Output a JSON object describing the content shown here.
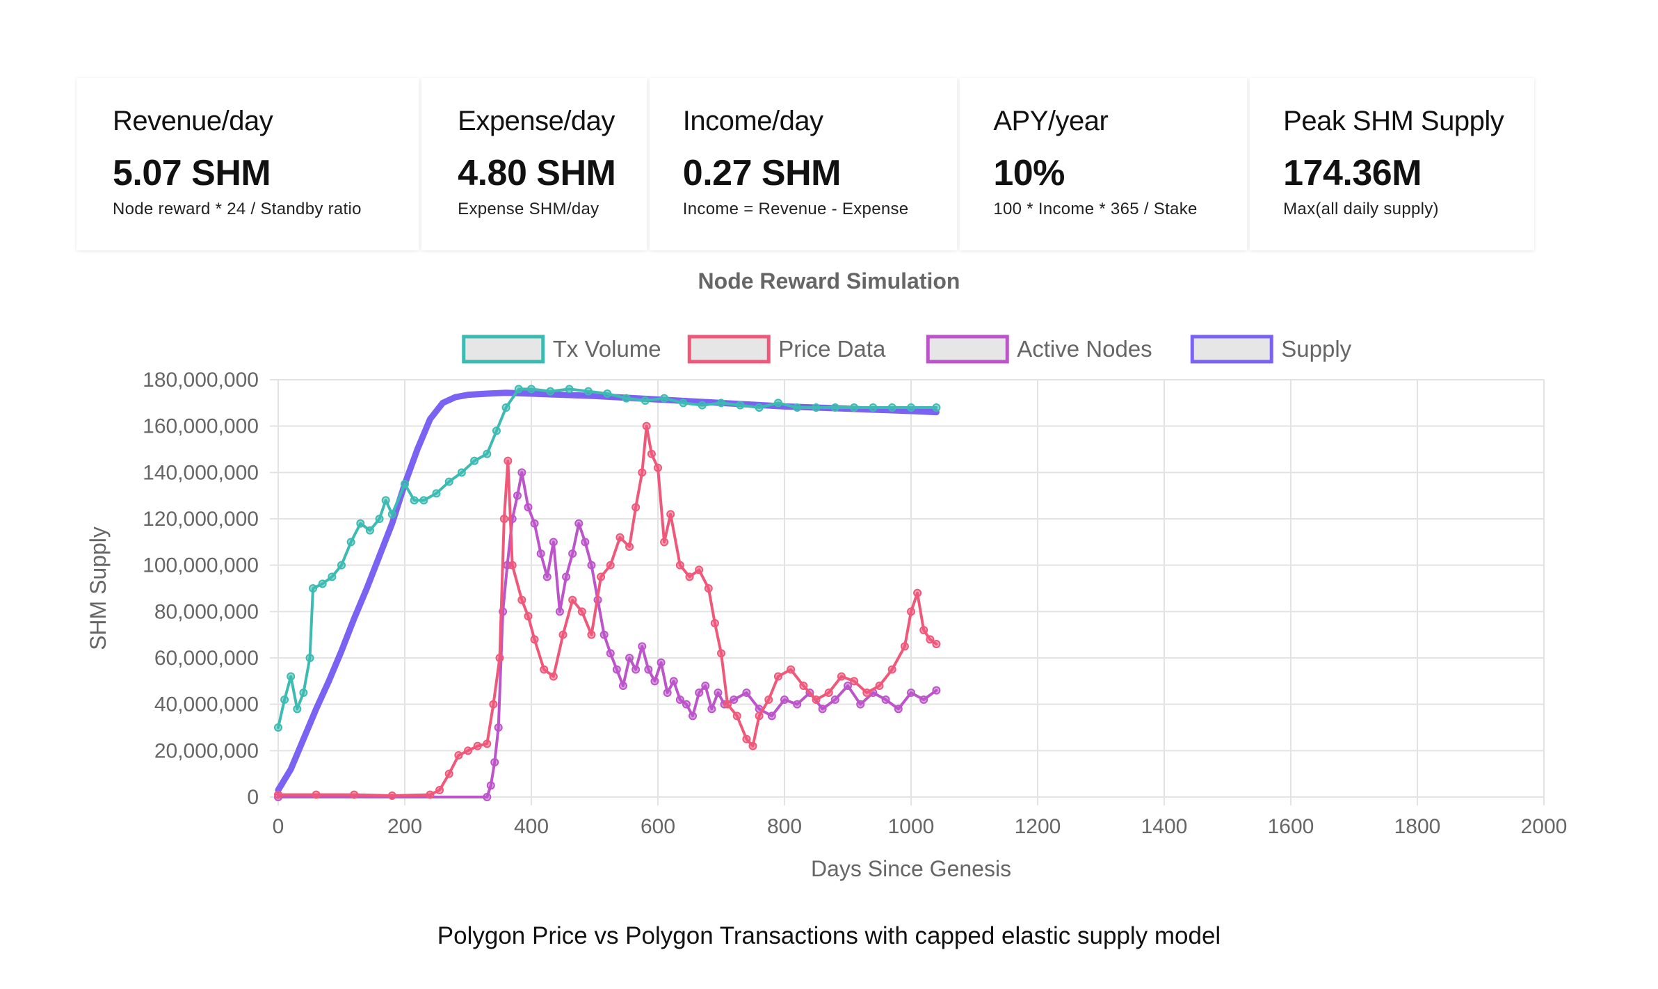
{
  "cards": [
    {
      "label": "Revenue/day",
      "value": "5.07 SHM",
      "sub": "Node reward * 24 / Standby ratio"
    },
    {
      "label": "Expense/day",
      "value": "4.80 SHM",
      "sub": "Expense  SHM/day"
    },
    {
      "label": "Income/day",
      "value": "0.27 SHM",
      "sub": "Income = Revenue - Expense"
    },
    {
      "label": "APY/year",
      "value": "10%",
      "sub": "100 * Income * 365 / Stake"
    },
    {
      "label": "Peak SHM Supply",
      "value": "174.36M",
      "sub": "Max(all daily supply)"
    }
  ],
  "caption": "Polygon Price vs Polygon Transactions with capped elastic supply model",
  "chart_data": {
    "type": "line",
    "title": "Node Reward Simulation",
    "xlabel": "Days Since Genesis",
    "ylabel": "SHM Supply",
    "xlim": [
      0,
      2000
    ],
    "ylim": [
      0,
      180000000
    ],
    "x_ticks": [
      "0",
      "200",
      "400",
      "600",
      "800",
      "1000",
      "1200",
      "1400",
      "1600",
      "1800",
      "2000"
    ],
    "y_ticks": [
      "0",
      "20,000,000",
      "40,000,000",
      "60,000,000",
      "80,000,000",
      "100,000,000",
      "120,000,000",
      "140,000,000",
      "160,000,000",
      "180,000,000"
    ],
    "grid": true,
    "legend_position": "top",
    "series": [
      {
        "name": "Tx Volume",
        "color": "#3dbbb2",
        "points": [
          [
            0,
            30000000
          ],
          [
            10,
            42000000
          ],
          [
            20,
            52000000
          ],
          [
            30,
            38000000
          ],
          [
            40,
            45000000
          ],
          [
            50,
            60000000
          ],
          [
            55,
            90000000
          ],
          [
            70,
            92000000
          ],
          [
            85,
            95000000
          ],
          [
            100,
            100000000
          ],
          [
            115,
            110000000
          ],
          [
            130,
            118000000
          ],
          [
            145,
            115000000
          ],
          [
            160,
            120000000
          ],
          [
            170,
            128000000
          ],
          [
            180,
            122000000
          ],
          [
            200,
            135000000
          ],
          [
            215,
            128000000
          ],
          [
            230,
            128000000
          ],
          [
            250,
            131000000
          ],
          [
            270,
            136000000
          ],
          [
            290,
            140000000
          ],
          [
            310,
            145000000
          ],
          [
            330,
            148000000
          ],
          [
            345,
            158000000
          ],
          [
            360,
            168000000
          ],
          [
            380,
            176000000
          ],
          [
            400,
            176000000
          ],
          [
            430,
            175000000
          ],
          [
            460,
            176000000
          ],
          [
            490,
            175000000
          ],
          [
            520,
            174000000
          ],
          [
            550,
            172000000
          ],
          [
            580,
            171000000
          ],
          [
            610,
            172000000
          ],
          [
            640,
            170000000
          ],
          [
            670,
            169000000
          ],
          [
            700,
            170000000
          ],
          [
            730,
            169000000
          ],
          [
            760,
            168000000
          ],
          [
            790,
            170000000
          ],
          [
            820,
            168000000
          ],
          [
            850,
            168000000
          ],
          [
            880,
            168000000
          ],
          [
            910,
            168000000
          ],
          [
            940,
            168000000
          ],
          [
            970,
            168000000
          ],
          [
            1000,
            168000000
          ],
          [
            1040,
            168000000
          ]
        ]
      },
      {
        "name": "Price Data",
        "color": "#f0587a",
        "points": [
          [
            0,
            1000000
          ],
          [
            60,
            1000000
          ],
          [
            120,
            1000000
          ],
          [
            180,
            600000
          ],
          [
            240,
            1000000
          ],
          [
            255,
            3000000
          ],
          [
            270,
            10000000
          ],
          [
            285,
            18000000
          ],
          [
            300,
            20000000
          ],
          [
            315,
            22000000
          ],
          [
            330,
            23000000
          ],
          [
            340,
            40000000
          ],
          [
            350,
            60000000
          ],
          [
            357,
            120000000
          ],
          [
            363,
            145000000
          ],
          [
            370,
            100000000
          ],
          [
            385,
            85000000
          ],
          [
            395,
            78000000
          ],
          [
            405,
            68000000
          ],
          [
            420,
            55000000
          ],
          [
            435,
            52000000
          ],
          [
            450,
            70000000
          ],
          [
            465,
            85000000
          ],
          [
            480,
            80000000
          ],
          [
            495,
            70000000
          ],
          [
            510,
            95000000
          ],
          [
            525,
            100000000
          ],
          [
            540,
            112000000
          ],
          [
            555,
            108000000
          ],
          [
            565,
            125000000
          ],
          [
            575,
            140000000
          ],
          [
            582,
            160000000
          ],
          [
            590,
            148000000
          ],
          [
            600,
            142000000
          ],
          [
            610,
            110000000
          ],
          [
            620,
            122000000
          ],
          [
            635,
            100000000
          ],
          [
            650,
            95000000
          ],
          [
            665,
            98000000
          ],
          [
            680,
            90000000
          ],
          [
            690,
            75000000
          ],
          [
            700,
            62000000
          ],
          [
            710,
            40000000
          ],
          [
            725,
            35000000
          ],
          [
            740,
            25000000
          ],
          [
            750,
            22000000
          ],
          [
            760,
            35000000
          ],
          [
            775,
            42000000
          ],
          [
            790,
            52000000
          ],
          [
            810,
            55000000
          ],
          [
            830,
            48000000
          ],
          [
            850,
            42000000
          ],
          [
            870,
            45000000
          ],
          [
            890,
            52000000
          ],
          [
            910,
            50000000
          ],
          [
            930,
            45000000
          ],
          [
            950,
            48000000
          ],
          [
            970,
            55000000
          ],
          [
            990,
            65000000
          ],
          [
            1000,
            80000000
          ],
          [
            1010,
            88000000
          ],
          [
            1020,
            72000000
          ],
          [
            1030,
            68000000
          ],
          [
            1040,
            66000000
          ]
        ]
      },
      {
        "name": "Active Nodes",
        "color": "#bb55c9",
        "points": [
          [
            0,
            0
          ],
          [
            330,
            0
          ],
          [
            336,
            5000000
          ],
          [
            342,
            15000000
          ],
          [
            348,
            30000000
          ],
          [
            355,
            80000000
          ],
          [
            362,
            100000000
          ],
          [
            370,
            120000000
          ],
          [
            378,
            130000000
          ],
          [
            385,
            140000000
          ],
          [
            395,
            125000000
          ],
          [
            405,
            118000000
          ],
          [
            415,
            105000000
          ],
          [
            425,
            95000000
          ],
          [
            435,
            110000000
          ],
          [
            445,
            80000000
          ],
          [
            455,
            95000000
          ],
          [
            465,
            105000000
          ],
          [
            475,
            118000000
          ],
          [
            485,
            110000000
          ],
          [
            495,
            100000000
          ],
          [
            505,
            85000000
          ],
          [
            515,
            70000000
          ],
          [
            525,
            62000000
          ],
          [
            535,
            55000000
          ],
          [
            545,
            48000000
          ],
          [
            555,
            60000000
          ],
          [
            565,
            55000000
          ],
          [
            575,
            65000000
          ],
          [
            585,
            55000000
          ],
          [
            595,
            50000000
          ],
          [
            605,
            58000000
          ],
          [
            615,
            45000000
          ],
          [
            625,
            50000000
          ],
          [
            635,
            42000000
          ],
          [
            645,
            40000000
          ],
          [
            655,
            35000000
          ],
          [
            665,
            45000000
          ],
          [
            675,
            48000000
          ],
          [
            685,
            38000000
          ],
          [
            695,
            45000000
          ],
          [
            705,
            40000000
          ],
          [
            720,
            42000000
          ],
          [
            740,
            45000000
          ],
          [
            760,
            38000000
          ],
          [
            780,
            35000000
          ],
          [
            800,
            42000000
          ],
          [
            820,
            40000000
          ],
          [
            840,
            45000000
          ],
          [
            860,
            38000000
          ],
          [
            880,
            42000000
          ],
          [
            900,
            48000000
          ],
          [
            920,
            40000000
          ],
          [
            940,
            45000000
          ],
          [
            960,
            42000000
          ],
          [
            980,
            38000000
          ],
          [
            1000,
            45000000
          ],
          [
            1020,
            42000000
          ],
          [
            1040,
            46000000
          ]
        ]
      },
      {
        "name": "Supply",
        "color": "#7a63f2",
        "points": [
          [
            0,
            3000000
          ],
          [
            20,
            12000000
          ],
          [
            40,
            25000000
          ],
          [
            60,
            38000000
          ],
          [
            80,
            50000000
          ],
          [
            100,
            63000000
          ],
          [
            120,
            77000000
          ],
          [
            140,
            90000000
          ],
          [
            160,
            104000000
          ],
          [
            180,
            118000000
          ],
          [
            200,
            135000000
          ],
          [
            220,
            150000000
          ],
          [
            240,
            163000000
          ],
          [
            260,
            170000000
          ],
          [
            280,
            172500000
          ],
          [
            300,
            173500000
          ],
          [
            330,
            174000000
          ],
          [
            360,
            174360000
          ],
          [
            400,
            174000000
          ],
          [
            500,
            173000000
          ],
          [
            600,
            171500000
          ],
          [
            700,
            170000000
          ],
          [
            800,
            168500000
          ],
          [
            900,
            167500000
          ],
          [
            1000,
            166500000
          ],
          [
            1040,
            166000000
          ]
        ]
      }
    ]
  }
}
